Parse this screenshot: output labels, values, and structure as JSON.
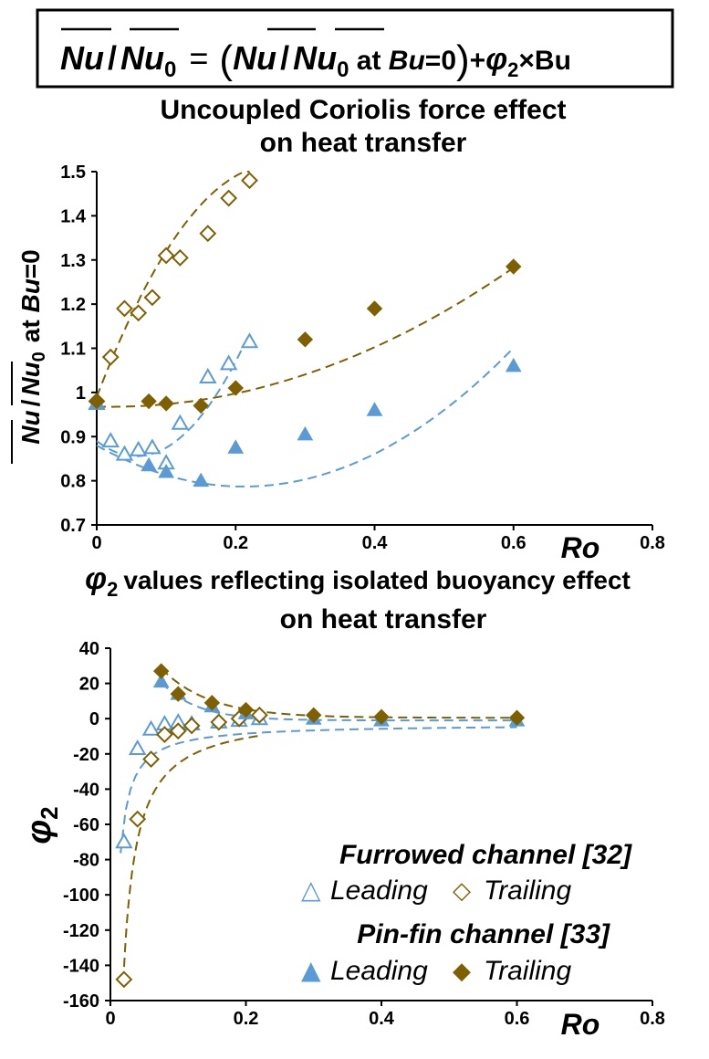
{
  "equation": {
    "lhs_num": "Nu",
    "slash": "/",
    "lhs_den": "Nu",
    "sub0": "0",
    "equals": "=",
    "paren_open": "(",
    "inner_num": "Nu",
    "inner_den": "Nu",
    "at_text": " at ",
    "bu": "Bu",
    "eq_zero": "=0",
    "paren_close": ")",
    "plus": "+",
    "phi": "φ",
    "sub2": "2",
    "times_bu": "×Bu"
  },
  "colors": {
    "blue": "#5B9BD5",
    "brown": "#7F6000",
    "axis": "#000000"
  },
  "legend": {
    "furrowed_title": "Furrowed channel [32]",
    "pinfin_title": "Pin-fin channel [33]",
    "leading": "Leading",
    "trailing": "Trailing",
    "open_triangle_glyph": "△",
    "open_diamond_glyph": "◇",
    "filled_triangle_glyph": "▲",
    "filled_diamond_glyph": "◆"
  },
  "chart_data": [
    {
      "type": "scatter",
      "title": [
        "Uncoupled Coriolis force effect",
        "on heat transfer"
      ],
      "xlabel": "Ro",
      "ylabel": {
        "num": "Nu",
        "den": "Nu",
        "sub": "0",
        "at": "at ",
        "bu": "Bu",
        "eq": "=0"
      },
      "xlim": [
        0,
        0.8
      ],
      "ylim": [
        0.7,
        1.5
      ],
      "xticks": [
        "0",
        "0.2",
        "0.4",
        "0.6",
        "0.8"
      ],
      "yticks": [
        "0.7",
        "0.8",
        "0.9",
        "1",
        "1.1",
        "1.2",
        "1.3",
        "1.4",
        "1.5"
      ],
      "series": [
        {
          "name": "Furrowed Leading",
          "marker": "open-triangle",
          "color": "blue",
          "x": [
            0,
            0.02,
            0.04,
            0.06,
            0.08,
            0.1,
            0.12,
            0.16,
            0.19,
            0.22
          ],
          "y": [
            0.975,
            0.89,
            0.86,
            0.87,
            0.875,
            0.84,
            0.93,
            1.035,
            1.065,
            1.115
          ]
        },
        {
          "name": "Furrowed Trailing",
          "marker": "open-diamond",
          "color": "brown",
          "x": [
            0,
            0.02,
            0.04,
            0.06,
            0.08,
            0.1,
            0.12,
            0.16,
            0.19,
            0.22
          ],
          "y": [
            0.98,
            1.08,
            1.19,
            1.18,
            1.215,
            1.31,
            1.305,
            1.36,
            1.44,
            1.48
          ]
        },
        {
          "name": "Pin-fin Leading",
          "marker": "filled-triangle",
          "color": "blue",
          "x": [
            0,
            0.075,
            0.1,
            0.15,
            0.2,
            0.3,
            0.4,
            0.6
          ],
          "y": [
            0.975,
            0.835,
            0.82,
            0.8,
            0.875,
            0.905,
            0.96,
            1.06
          ]
        },
        {
          "name": "Pin-fin Trailing",
          "marker": "filled-diamond",
          "color": "brown",
          "x": [
            0,
            0.075,
            0.1,
            0.15,
            0.2,
            0.3,
            0.4,
            0.6
          ],
          "y": [
            0.98,
            0.98,
            0.975,
            0.97,
            1.01,
            1.12,
            1.19,
            1.285
          ]
        }
      ],
      "fits": [
        {
          "name": "Furrowed Leading fit",
          "color": "blue",
          "from": 0,
          "to": 0.22,
          "coef": [
            0.89,
            -1.2,
            10.5
          ]
        },
        {
          "name": "Furrowed Trailing fit",
          "color": "brown",
          "from": 0,
          "to": 0.22,
          "coef": [
            0.99,
            4.1,
            -8.0
          ]
        },
        {
          "name": "Pin-fin Leading fit",
          "color": "blue",
          "from": 0,
          "to": 0.6,
          "coef": [
            0.88,
            -0.88,
            2.08
          ]
        },
        {
          "name": "Pin-fin Trailing fit",
          "color": "brown",
          "from": 0,
          "to": 0.6,
          "coef": [
            0.968,
            -0.04,
            0.94
          ]
        }
      ]
    },
    {
      "type": "scatter",
      "title": [
        "values reflecting isolated buoyancy effect",
        "on heat transfer"
      ],
      "title_symbol": {
        "phi": "φ",
        "sub": "2"
      },
      "xlabel": "Ro",
      "ylabel": {
        "phi": "φ",
        "sub": "2"
      },
      "xlim": [
        0,
        0.8
      ],
      "ylim": [
        -160,
        40
      ],
      "xticks": [
        "0",
        "0.2",
        "0.4",
        "0.6",
        "0.8"
      ],
      "yticks": [
        "-160",
        "-140",
        "-120",
        "-100",
        "-80",
        "-60",
        "-40",
        "-20",
        "0",
        "20",
        "40"
      ],
      "series": [
        {
          "name": "Furrowed Leading",
          "marker": "open-triangle",
          "color": "blue",
          "x": [
            0.02,
            0.04,
            0.06,
            0.08,
            0.1,
            0.12,
            0.16,
            0.19,
            0.22
          ],
          "y": [
            -70,
            -17,
            -6,
            -3,
            -2,
            -3,
            -2,
            -1,
            0
          ]
        },
        {
          "name": "Furrowed Trailing",
          "marker": "open-diamond",
          "color": "brown",
          "x": [
            0.02,
            0.04,
            0.06,
            0.08,
            0.1,
            0.12,
            0.16,
            0.19,
            0.22
          ],
          "y": [
            -148,
            -57,
            -23,
            -9,
            -7,
            -4,
            -2,
            0,
            2
          ]
        },
        {
          "name": "Pin-fin Leading",
          "marker": "filled-triangle",
          "color": "blue",
          "x": [
            0.075,
            0.1,
            0.15,
            0.2,
            0.3,
            0.4,
            0.6
          ],
          "y": [
            21,
            14,
            7,
            3,
            0,
            -1,
            -1
          ]
        },
        {
          "name": "Pin-fin Trailing",
          "marker": "filled-diamond",
          "color": "brown",
          "x": [
            0.075,
            0.1,
            0.15,
            0.2,
            0.3,
            0.4,
            0.6
          ],
          "y": [
            27,
            14,
            9,
            5,
            2,
            1,
            0.5
          ]
        }
      ],
      "fits": [
        {
          "name": "Furrowed Leading fit",
          "color": "blue",
          "kind": "inv",
          "from": 0.015,
          "to": 0.6,
          "a": -1.1,
          "b": -3.0
        },
        {
          "name": "Furrowed Trailing fit",
          "color": "brown",
          "kind": "inv",
          "from": 0.019,
          "to": 0.22,
          "a": -2.9,
          "b": 3.5
        },
        {
          "name": "Pin-fin Leading fit",
          "color": "blue",
          "kind": "exp",
          "from": 0.075,
          "to": 0.6,
          "A": 90,
          "k": 19,
          "c": -1
        },
        {
          "name": "Pin-fin Trailing fit",
          "color": "brown",
          "kind": "exp",
          "from": 0.075,
          "to": 0.6,
          "A": 80,
          "k": 14,
          "c": 0.5
        }
      ]
    }
  ]
}
